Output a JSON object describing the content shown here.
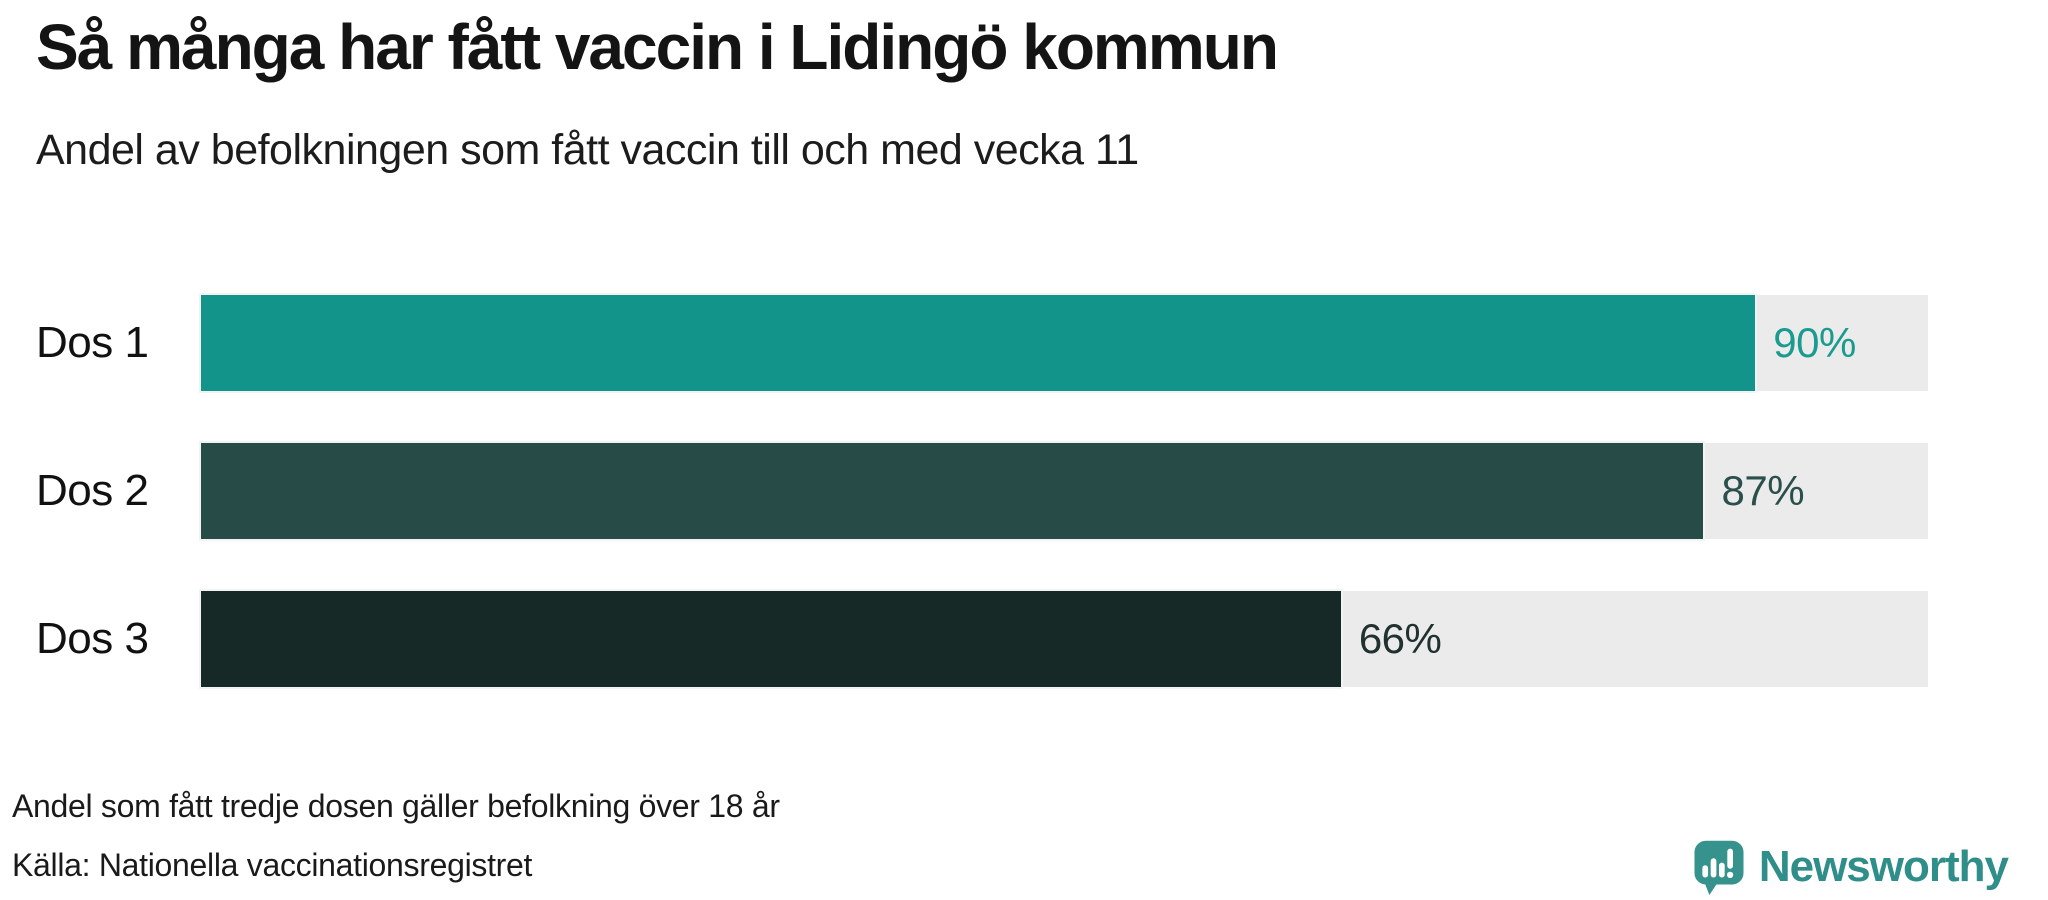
{
  "header": {
    "title": "Så många har fått vaccin i Lidingö kommun",
    "subtitle": "Andel av befolkningen som fått vaccin till och med vecka 11"
  },
  "footer": {
    "footnote": "Andel som fått tredje dosen gäller befolkning över 18 år",
    "source": "Källa: Nationella vaccinationsregistret",
    "logo_text": "Newsworthy"
  },
  "colors": {
    "track": "#ebebeb",
    "title_text": "#141414",
    "logo_icon": "#35928c",
    "logo_text": "#2f8e89"
  },
  "icons": {
    "logo_icon_name": "newsworthy-bar-chart-speech-bubble-icon"
  },
  "chart_data": {
    "type": "bar",
    "orientation": "horizontal",
    "title": "Så många har fått vaccin i Lidingö kommun",
    "subtitle": "Andel av befolkningen som fått vaccin till och med vecka 11",
    "categories": [
      "Dos 1",
      "Dos 2",
      "Dos 3"
    ],
    "values": [
      90,
      87,
      66
    ],
    "value_labels": [
      "90%",
      "87%",
      "66%"
    ],
    "xlim": [
      0,
      100
    ],
    "grid": false,
    "legend": false,
    "bar_colors": [
      "#13948a",
      "#274c47",
      "#162927"
    ],
    "value_label_colors": [
      "#1b9b90",
      "#2b4f4a",
      "#20312e"
    ],
    "track_color": "#ebebeb",
    "footnote": "Andel som fått tredje dosen gäller befolkning över 18 år",
    "source": "Källa: Nationella vaccinationsregistret"
  }
}
